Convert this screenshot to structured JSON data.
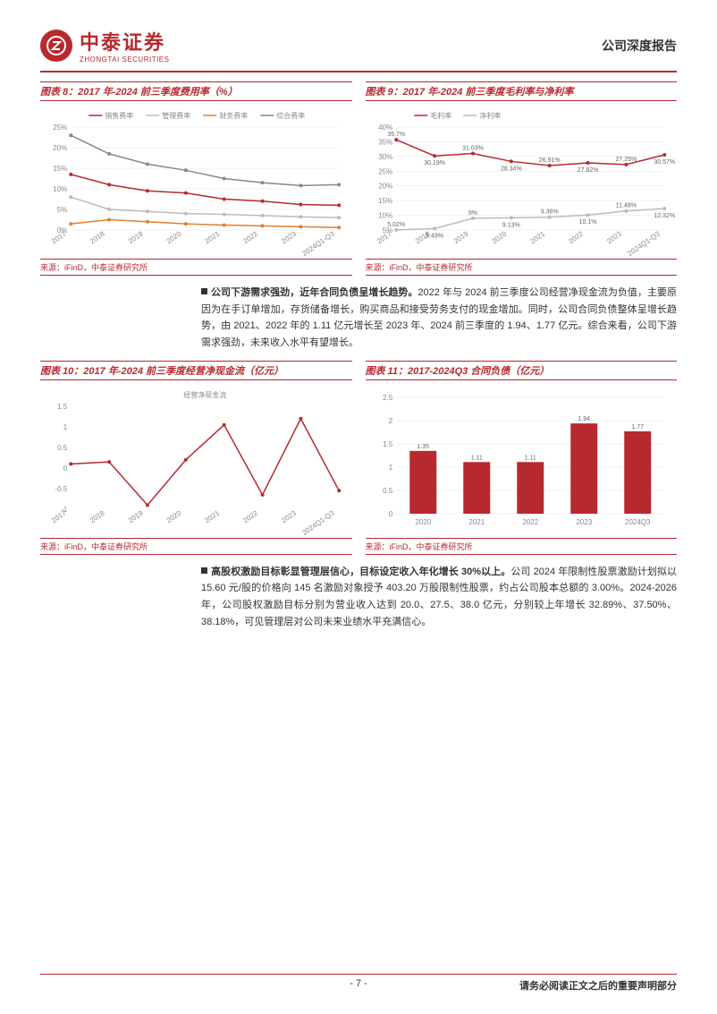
{
  "header": {
    "logo_cn": "中泰证券",
    "logo_en": "ZHONGTAI SECURITIES",
    "doc_type": "公司深度报告"
  },
  "chart8": {
    "title": "图表 8：2017 年-2024 前三季度费用率（%）",
    "source": "来源：iFinD，中泰证券研究所",
    "type": "line",
    "categories": [
      "2017",
      "2018",
      "2019",
      "2020",
      "2021",
      "2022",
      "2023",
      "2024Q1-Q3"
    ],
    "series": [
      {
        "name": "销售费率",
        "color": "#b8292f",
        "values": [
          13.5,
          11.0,
          9.5,
          9.0,
          7.5,
          7.0,
          6.2,
          6.0
        ]
      },
      {
        "name": "管理费率",
        "color": "#bbbbbb",
        "values": [
          8.0,
          5.0,
          4.5,
          4.0,
          3.8,
          3.5,
          3.2,
          3.0
        ]
      },
      {
        "name": "财务费率",
        "color": "#e08030",
        "values": [
          1.5,
          2.5,
          2.0,
          1.5,
          1.2,
          1.0,
          0.8,
          0.6
        ]
      },
      {
        "name": "综合费率",
        "color": "#888888",
        "values": [
          23.0,
          18.5,
          16.0,
          14.5,
          12.5,
          11.5,
          10.8,
          11.0
        ]
      }
    ],
    "ylim": [
      0,
      25
    ],
    "ytick_step": 5,
    "background_color": "#ffffff",
    "grid_color": "#e5e5e5"
  },
  "chart9": {
    "title": "图表 9：2017 年-2024 前三季度毛利率与净利率",
    "source": "来源：iFinD，中泰证券研究所",
    "type": "line",
    "categories": [
      "2017",
      "2018",
      "2019",
      "2020",
      "2021",
      "2022",
      "2023",
      "2024Q1-Q3"
    ],
    "series": [
      {
        "name": "毛利率",
        "color": "#b8292f",
        "values": [
          35.7,
          30.19,
          31.03,
          28.34,
          26.91,
          27.82,
          27.25,
          30.57
        ],
        "labels": [
          "35.7%",
          "30.19%",
          "31.03%",
          "28.34%",
          "26.91%",
          "27.82%",
          "27.25%",
          "30.57%"
        ]
      },
      {
        "name": "净利率",
        "color": "#bbbbbb",
        "values": [
          5.02,
          5.49,
          9.0,
          9.13,
          9.36,
          10.1,
          11.48,
          12.32
        ],
        "labels": [
          "5.02%",
          "5.49%",
          "9%",
          "9.13%",
          "9.36%",
          "10.1%",
          "11.48%",
          "12.32%"
        ]
      }
    ],
    "ylim": [
      5,
      40
    ],
    "ytick_step": 5,
    "background_color": "#ffffff",
    "grid_color": "#e5e5e5"
  },
  "text1": {
    "bold": "公司下游需求强劲，近年合同负债呈增长趋势。",
    "body": "2022 年与 2024 前三季度公司经营净现金流为负值，主要原因为在手订单增加，存货储备增长，购买商品和接受劳务支付的现金增加。同时，公司合同负债整体呈增长趋势，由 2021、2022 年的 1.11 亿元增长至 2023 年、2024 前三季度的 1.94、1.77 亿元。综合来看，公司下游需求强劲，未来收入水平有望增长。"
  },
  "chart10": {
    "title": "图表 10：2017 年-2024 前三季度经营净现金流（亿元）",
    "source": "来源：iFinD，中泰证券研究所",
    "type": "line",
    "legend_label": "经营净现金流",
    "categories": [
      "2017",
      "2018",
      "2019",
      "2020",
      "2021",
      "2022",
      "2023",
      "2024Q1-Q3"
    ],
    "series": [
      {
        "name": "经营净现金流",
        "color": "#b8292f",
        "values": [
          0.1,
          0.15,
          -0.9,
          0.2,
          1.05,
          -0.65,
          1.2,
          -0.55
        ]
      }
    ],
    "ylim": [
      -1,
      1.5
    ],
    "ytick_step": 0.5,
    "background_color": "#ffffff"
  },
  "chart11": {
    "title": "图表 11：2017-2024Q3 合同负债（亿元）",
    "source": "来源：iFinD，中泰证券研究所",
    "type": "bar",
    "categories": [
      "2020",
      "2021",
      "2022",
      "2023",
      "2024Q3"
    ],
    "values": [
      1.35,
      1.11,
      1.11,
      1.94,
      1.77
    ],
    "bar_color": "#b8292f",
    "ylim": [
      0,
      2.5
    ],
    "ytick_step": 0.5,
    "bar_width": 0.5,
    "background_color": "#ffffff",
    "grid_color": "#e5e5e5"
  },
  "text2": {
    "bold": "高股权激励目标彰显管理层信心，目标设定收入年化增长 30%以上。",
    "body": "公司 2024 年限制性股票激励计划拟以 15.60 元/股的价格向 145 名激励对象授予 403.20 万股限制性股票，约占公司股本总额的 3.00%。2024-2026 年，公司股权激励目标分别为营业收入达到 20.0、27.5、38.0 亿元，分别较上年增长 32.89%、37.50%、38.18%，可见管理层对公司未来业绩水平充满信心。"
  },
  "footer": {
    "page": "- 7 -",
    "disclaimer": "请务必阅读正文之后的重要声明部分"
  }
}
